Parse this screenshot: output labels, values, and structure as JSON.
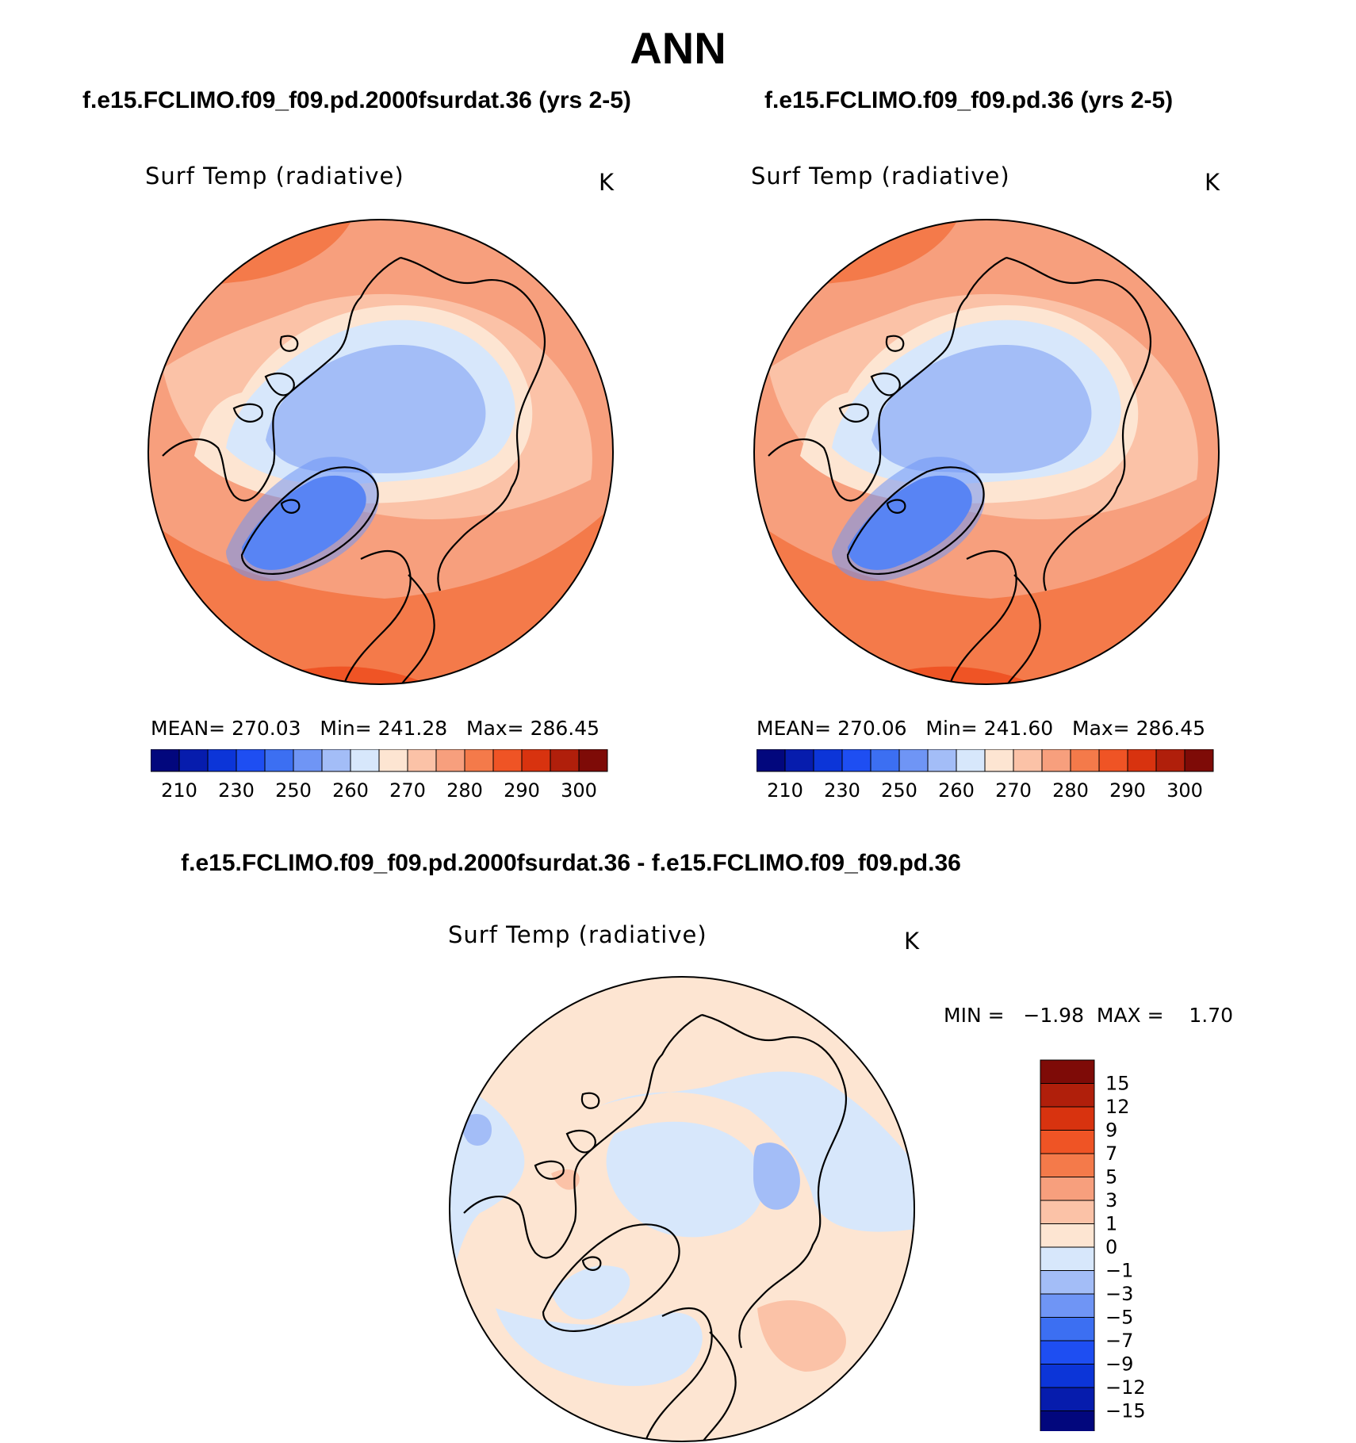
{
  "title": "ANN",
  "panels": [
    {
      "case": "f.e15.FCLIMO.f09_f09.pd.2000fsurdat.36 (yrs 2-5)",
      "variable": "Surf Temp (radiative)",
      "units": "K",
      "mean_label": "MEAN=",
      "mean": "270.03",
      "min_label": "Min=",
      "min": "241.28",
      "max_label": "Max=",
      "max": "286.45"
    },
    {
      "case": "f.e15.FCLIMO.f09_f09.pd.36 (yrs 2-5)",
      "variable": "Surf Temp (radiative)",
      "units": "K",
      "mean_label": "MEAN=",
      "mean": "270.06",
      "min_label": "Min=",
      "min": "241.60",
      "max_label": "Max=",
      "max": "286.45"
    }
  ],
  "diff": {
    "case": "f.e15.FCLIMO.f09_f09.pd.2000fsurdat.36 - f.e15.FCLIMO.f09_f09.pd.36",
    "variable": "Surf Temp (radiative)",
    "units": "K",
    "minmax_text": "MIN =   −1.98  MAX =    1.70"
  },
  "colorbar_abs": {
    "ticks": [
      "210",
      "230",
      "250",
      "260",
      "270",
      "280",
      "290",
      "300"
    ],
    "colors": [
      "#02077d",
      "#061cad",
      "#0c35d8",
      "#1e4ef2",
      "#3c6ff2",
      "#6f95f5",
      "#a3bdf7",
      "#d7e7fb",
      "#fde5d2",
      "#fbc2a7",
      "#f79f7d",
      "#f47a4a",
      "#ef5425",
      "#d8330f",
      "#b01f0b",
      "#7e0b07"
    ]
  },
  "colorbar_diff": {
    "labels": [
      "15",
      "12",
      "9",
      "7",
      "5",
      "3",
      "1",
      "0",
      "−1",
      "−3",
      "−5",
      "−7",
      "−9",
      "−12",
      "−15"
    ],
    "colors": [
      "#7e0b07",
      "#b01f0b",
      "#d8330f",
      "#ef5425",
      "#f47a4a",
      "#f79f7d",
      "#fbc2a7",
      "#fde5d2",
      "#d7e7fb",
      "#a3bdf7",
      "#6f95f5",
      "#3c6ff2",
      "#1e4ef2",
      "#0c35d8",
      "#061cad",
      "#02077d"
    ]
  }
}
